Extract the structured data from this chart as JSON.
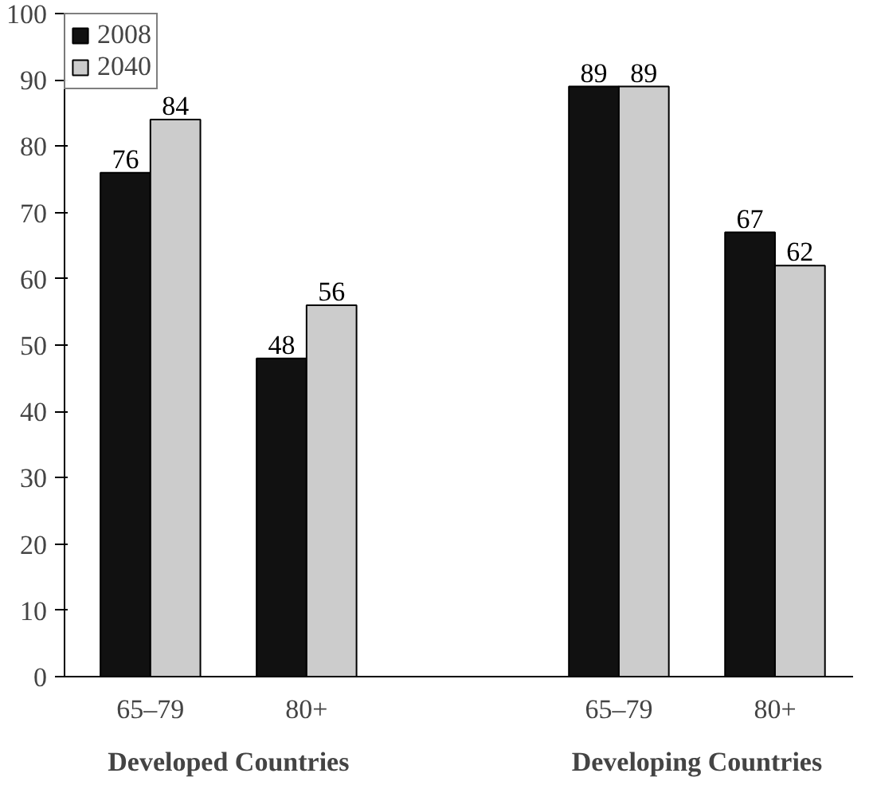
{
  "chart_data": {
    "type": "bar",
    "categories": [
      "65–79",
      "80+",
      null,
      "65–79",
      "80+"
    ],
    "series": [
      {
        "name": "2008",
        "color": "#111111",
        "values": [
          76,
          48,
          null,
          89,
          67
        ]
      },
      {
        "name": "2040",
        "color": "#cccccc",
        "values": [
          84,
          56,
          null,
          89,
          62
        ]
      }
    ],
    "annotations": [
      "Developed Countries",
      "Developing Countries"
    ],
    "ylim": [
      0,
      100
    ],
    "yticks": [
      0,
      10,
      20,
      30,
      40,
      50,
      60,
      70,
      80,
      90,
      100
    ],
    "data_labels": true,
    "legend": "top left",
    "grid": false
  }
}
